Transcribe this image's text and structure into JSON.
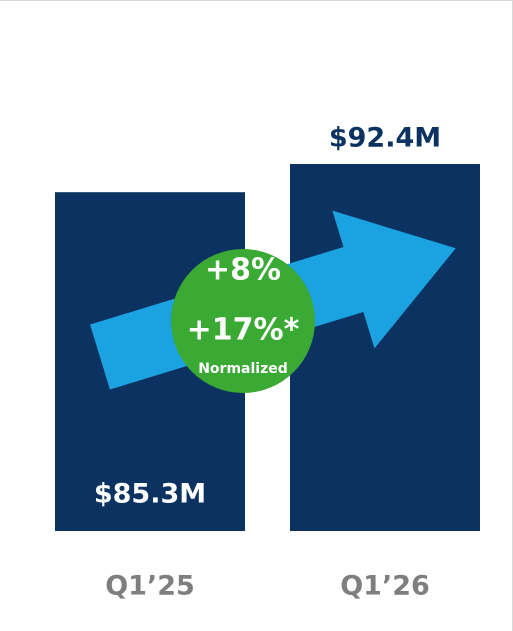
{
  "chart_data": {
    "type": "bar",
    "categories": [
      "Q1’25",
      "Q1’26"
    ],
    "values": [
      85.3,
      92.4
    ],
    "value_labels": [
      "$85.3M",
      "$92.4M"
    ],
    "color": "#0b3260",
    "annotations": [
      "+8%",
      "+17%*",
      "Normalized"
    ]
  }
}
